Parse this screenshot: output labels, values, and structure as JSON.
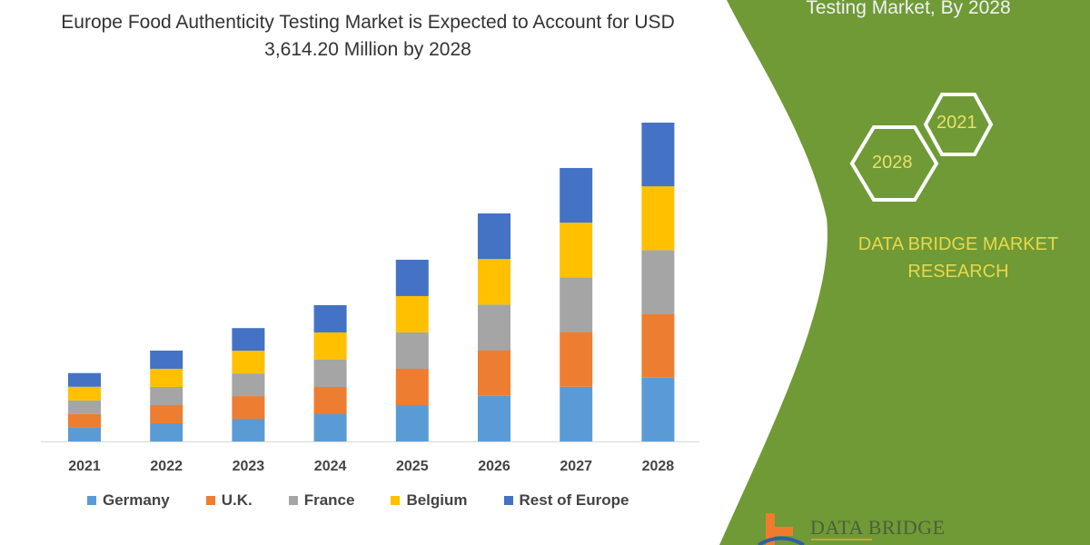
{
  "header": {
    "title": "Europe Food Authenticity Testing Market is Expected to Account for USD 3,614.20 Million by 2028"
  },
  "side_panel": {
    "title": "Testing Market, By 2028",
    "hex_labels": [
      "2021",
      "2028"
    ],
    "brand_text": "DATA BRIDGE MARKET RESEARCH",
    "logo_text": "DATA BRIDGE",
    "green_color": "#6f9a36",
    "hex_text_color": "#e8e06a"
  },
  "chart_data": {
    "type": "bar",
    "stacked": true,
    "title": "Europe Food Authenticity Testing Market is Expected to Account for USD 3,614.20 Million by 2028",
    "xlabel": "",
    "ylabel": "",
    "y_axis_visible": false,
    "grid": false,
    "legend_position": "bottom",
    "categories": [
      "2021",
      "2022",
      "2023",
      "2024",
      "2025",
      "2026",
      "2027",
      "2028"
    ],
    "series": [
      {
        "name": "Germany",
        "color": "#5b9bd5",
        "values": [
          155,
          206,
          257,
          309,
          412,
          517,
          620,
          723
        ]
      },
      {
        "name": "U.K.",
        "color": "#ed7d31",
        "values": [
          155,
          206,
          257,
          309,
          412,
          517,
          620,
          723
        ]
      },
      {
        "name": "France",
        "color": "#a5a5a5",
        "values": [
          155,
          206,
          257,
          309,
          412,
          517,
          620,
          723
        ]
      },
      {
        "name": "Belgium",
        "color": "#ffc000",
        "values": [
          155,
          206,
          257,
          309,
          412,
          517,
          620,
          723
        ]
      },
      {
        "name": "Rest of Europe",
        "color": "#4472c4",
        "values": [
          155,
          206,
          257,
          309,
          412,
          517,
          620,
          722.2
        ]
      }
    ]
  }
}
